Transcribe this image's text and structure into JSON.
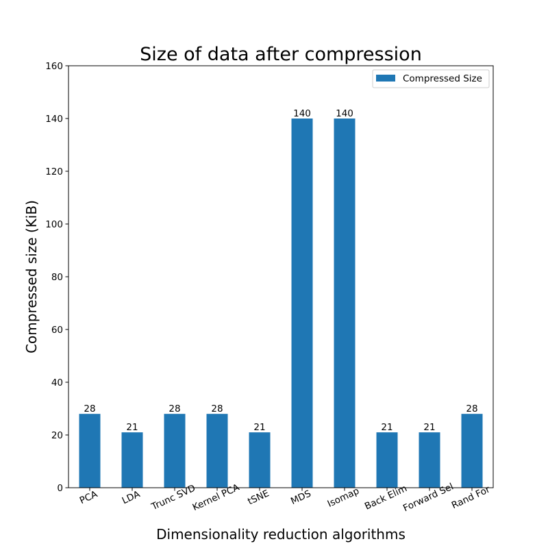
{
  "chart_data": {
    "type": "bar",
    "title": "Size of data after compression",
    "xlabel": "Dimensionality reduction algorithms",
    "ylabel": "Compressed size (KiB)",
    "categories": [
      "PCA",
      "LDA",
      "Trunc SVD",
      "Kernel PCA",
      "tSNE",
      "MDS",
      "Isomap",
      "Back Elim",
      "Forward Sel",
      "Rand For"
    ],
    "series": [
      {
        "name": "Compressed Size",
        "values": [
          28,
          21,
          28,
          28,
          21,
          140,
          140,
          21,
          21,
          28
        ],
        "color": "#1f77b4"
      }
    ],
    "ylim": [
      0,
      160
    ],
    "yticks": [
      0,
      20,
      40,
      60,
      80,
      100,
      120,
      140,
      160
    ],
    "grid": false,
    "legend_position": "top-right",
    "xtick_rotation": 25
  }
}
